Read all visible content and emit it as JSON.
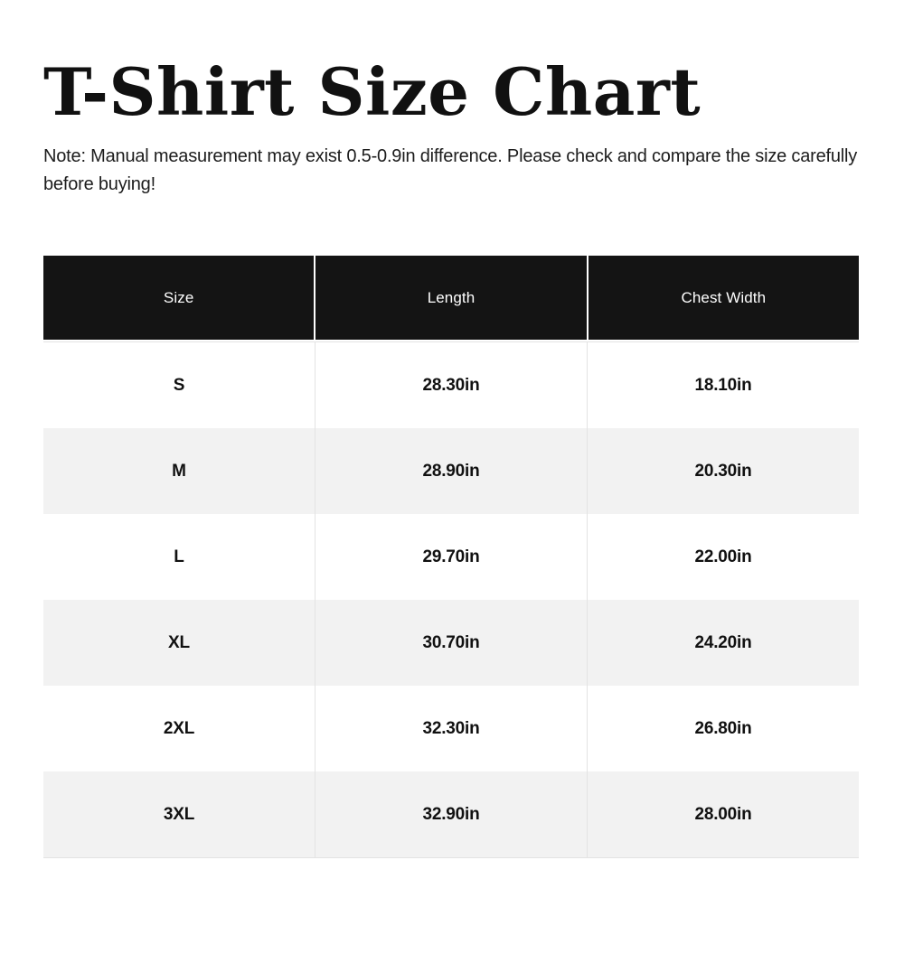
{
  "page": {
    "title": "T-Shirt Size Chart",
    "note": "Note: Manual measurement may exist 0.5-0.9in difference. Please check and compare the size carefully before buying!"
  },
  "chart_data": {
    "type": "table",
    "title": "T-Shirt Size Chart",
    "columns": [
      "Size",
      "Length",
      "Chest Width"
    ],
    "rows": [
      [
        "S",
        "28.30in",
        "18.10in"
      ],
      [
        "M",
        "28.90in",
        "20.30in"
      ],
      [
        "L",
        "29.70in",
        "22.00in"
      ],
      [
        "XL",
        "30.70in",
        "24.20in"
      ],
      [
        "2XL",
        "32.30in",
        "26.80in"
      ],
      [
        "3XL",
        "32.90in",
        "28.00in"
      ]
    ],
    "units": "in",
    "layout_hints": {
      "header_style": "dark-inverted",
      "zebra_striping": true,
      "column_alignment": "center"
    }
  },
  "colors": {
    "title_text": "#111111",
    "note_text": "#1c1c1c",
    "header_bg": "#141414",
    "header_text": "#ffffff",
    "row_bg": "#ffffff",
    "row_alt_bg": "#f2f2f2",
    "body_text": "#111111",
    "grid_line": "#e3e3e3"
  }
}
